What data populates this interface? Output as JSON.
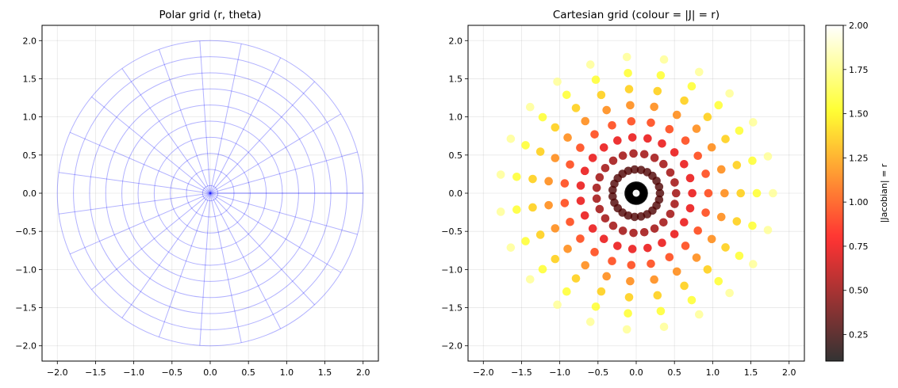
{
  "chart_data": [
    {
      "type": "line",
      "title": "Polar grid (r, theta)",
      "xlabel": "",
      "ylabel": "",
      "xlim": [
        -2.2,
        2.2
      ],
      "ylim": [
        -2.2,
        2.2
      ],
      "xticks": [
        "−2.0",
        "−1.5",
        "−1.0",
        "−0.5",
        "0.0",
        "0.5",
        "1.0",
        "1.5",
        "2.0"
      ],
      "yticks": [
        "−2.0",
        "−1.5",
        "−1.0",
        "−0.5",
        "0.0",
        "0.5",
        "1.0",
        "1.5",
        "2.0"
      ],
      "grid": true,
      "line_color": "#0000ff",
      "r_values": [
        0.1,
        0.311,
        0.522,
        0.733,
        0.944,
        1.156,
        1.367,
        1.578,
        1.789,
        2.0
      ],
      "theta_deg": [
        0,
        15.65,
        31.3,
        46.96,
        62.61,
        78.26,
        93.91,
        109.57,
        125.22,
        140.87,
        156.52,
        172.17,
        187.83,
        203.48,
        219.13,
        234.78,
        250.43,
        266.09,
        281.74,
        297.39,
        313.04,
        328.7,
        344.35,
        360
      ]
    },
    {
      "type": "scatter",
      "title": "Cartesian grid (colour = |J| = r)",
      "xlabel": "",
      "ylabel": "",
      "xlim": [
        -2.2,
        2.2
      ],
      "ylim": [
        -2.2,
        2.2
      ],
      "xticks": [
        "−2.0",
        "−1.5",
        "−1.0",
        "−0.5",
        "0.0",
        "0.5",
        "1.0",
        "1.5",
        "2.0"
      ],
      "yticks": [
        "−2.0",
        "−1.5",
        "−1.0",
        "−0.5",
        "0.0",
        "0.5",
        "1.0",
        "1.5",
        "2.0"
      ],
      "grid": true,
      "colormap": "hot",
      "alpha": 0.8,
      "r_values": [
        0.1,
        0.311,
        0.522,
        0.733,
        0.944,
        1.156,
        1.367,
        1.578,
        1.789
      ],
      "theta_deg": [
        0,
        15.65,
        31.3,
        46.96,
        62.61,
        78.26,
        93.91,
        109.57,
        125.22,
        140.87,
        156.52,
        172.17,
        187.83,
        203.48,
        219.13,
        234.78,
        250.43,
        266.09,
        281.74,
        297.39,
        313.04,
        328.7,
        344.35
      ],
      "colour_value": "r",
      "colorbar": {
        "label": "|Jacobian| = r",
        "range": [
          0.1,
          2.0
        ],
        "ticks": [
          "0.25",
          "0.50",
          "0.75",
          "1.00",
          "1.25",
          "1.50",
          "1.75",
          "2.00"
        ],
        "tick_values": [
          0.25,
          0.5,
          0.75,
          1.0,
          1.25,
          1.5,
          1.75,
          2.0
        ]
      }
    }
  ]
}
